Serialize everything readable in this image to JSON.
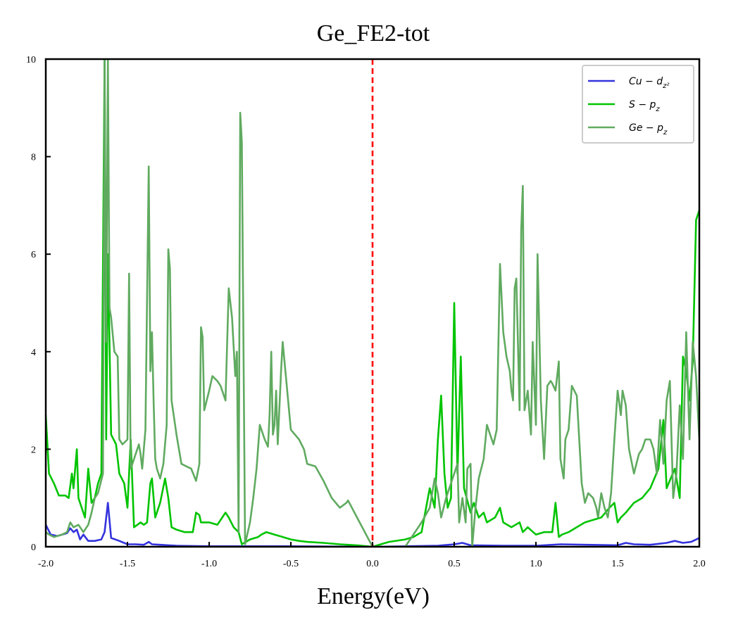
{
  "chart_data": {
    "type": "line",
    "title": "Ge_FE2-tot",
    "xlabel": "Energy(eV)",
    "ylabel": "",
    "xlim": [
      -2.0,
      2.0
    ],
    "ylim": [
      0,
      10
    ],
    "xticks": [
      -2.0,
      -1.5,
      -1.0,
      -0.5,
      0.0,
      0.5,
      1.0,
      1.5,
      2.0
    ],
    "xtick_labels": [
      "-2.0",
      "-1.5",
      "-1.0",
      "-0.5",
      "0.0",
      "0.5",
      "1.0",
      "1.5",
      "2.0"
    ],
    "yticks": [
      0,
      2,
      4,
      6,
      8,
      10
    ],
    "ytick_labels": [
      "0",
      "2",
      "4",
      "6",
      "8",
      "10"
    ],
    "grid": false,
    "legend_position": "top-right",
    "vline": {
      "x": 0.0,
      "color": "#ff0000",
      "style": "dashed"
    },
    "series": [
      {
        "name": "Cu − d",
        "legend_sub": "z²",
        "color": "#3333dd",
        "x": [
          -2.0,
          -1.97,
          -1.93,
          -1.9,
          -1.87,
          -1.85,
          -1.83,
          -1.81,
          -1.79,
          -1.77,
          -1.74,
          -1.7,
          -1.66,
          -1.64,
          -1.62,
          -1.6,
          -1.55,
          -1.5,
          -1.45,
          -1.4,
          -1.37,
          -1.35,
          -1.3,
          -1.25,
          -1.2,
          -1.0,
          -0.5,
          0.0,
          0.4,
          0.5,
          0.55,
          0.6,
          0.8,
          1.0,
          1.15,
          1.5,
          1.55,
          1.6,
          1.7,
          1.8,
          1.85,
          1.9,
          1.95,
          2.0
        ],
        "y": [
          0.45,
          0.25,
          0.22,
          0.25,
          0.28,
          0.38,
          0.3,
          0.35,
          0.15,
          0.25,
          0.12,
          0.12,
          0.15,
          0.3,
          0.9,
          0.18,
          0.12,
          0.05,
          0.05,
          0.04,
          0.1,
          0.05,
          0.04,
          0.03,
          0.02,
          0.01,
          0.01,
          0.0,
          0.02,
          0.05,
          0.08,
          0.03,
          0.02,
          0.02,
          0.05,
          0.03,
          0.08,
          0.05,
          0.04,
          0.08,
          0.12,
          0.08,
          0.1,
          0.18
        ]
      },
      {
        "name": "S − p",
        "legend_sub": "z",
        "color": "#00c400",
        "x": [
          -2.0,
          -1.98,
          -1.95,
          -1.92,
          -1.88,
          -1.86,
          -1.84,
          -1.83,
          -1.81,
          -1.8,
          -1.78,
          -1.76,
          -1.74,
          -1.72,
          -1.7,
          -1.68,
          -1.66,
          -1.64,
          -1.63,
          -1.62,
          -1.6,
          -1.57,
          -1.55,
          -1.52,
          -1.5,
          -1.48,
          -1.46,
          -1.42,
          -1.4,
          -1.38,
          -1.36,
          -1.35,
          -1.33,
          -1.3,
          -1.27,
          -1.25,
          -1.23,
          -1.2,
          -1.15,
          -1.1,
          -1.08,
          -1.06,
          -1.05,
          -1.0,
          -0.95,
          -0.9,
          -0.88,
          -0.85,
          -0.82,
          -0.8,
          -0.75,
          -0.7,
          -0.68,
          -0.65,
          -0.6,
          -0.55,
          -0.5,
          -0.45,
          -0.4,
          -0.3,
          -0.2,
          -0.1,
          0.0,
          0.1,
          0.2,
          0.25,
          0.3,
          0.35,
          0.38,
          0.4,
          0.42,
          0.44,
          0.46,
          0.48,
          0.5,
          0.52,
          0.54,
          0.56,
          0.6,
          0.62,
          0.65,
          0.68,
          0.7,
          0.75,
          0.78,
          0.8,
          0.85,
          0.9,
          0.92,
          0.95,
          1.0,
          1.05,
          1.1,
          1.12,
          1.14,
          1.16,
          1.2,
          1.25,
          1.3,
          1.35,
          1.4,
          1.45,
          1.48,
          1.5,
          1.52,
          1.55,
          1.6,
          1.65,
          1.7,
          1.75,
          1.78,
          1.8,
          1.85,
          1.88,
          1.9,
          1.92,
          1.94,
          1.96,
          1.98,
          2.0
        ],
        "y": [
          2.7,
          1.5,
          1.3,
          1.05,
          1.05,
          1.0,
          1.5,
          1.2,
          2.0,
          1.0,
          0.8,
          0.6,
          1.6,
          0.9,
          1.0,
          1.3,
          1.5,
          10.0,
          2.2,
          6.0,
          2.3,
          2.1,
          1.5,
          1.3,
          0.8,
          2.2,
          0.4,
          0.5,
          0.45,
          0.5,
          1.3,
          1.4,
          0.6,
          0.9,
          1.4,
          1.0,
          0.4,
          0.35,
          0.3,
          0.3,
          0.7,
          0.65,
          0.5,
          0.5,
          0.45,
          0.7,
          0.6,
          0.4,
          0.3,
          0.05,
          0.15,
          0.2,
          0.25,
          0.3,
          0.25,
          0.2,
          0.15,
          0.12,
          0.1,
          0.08,
          0.05,
          0.03,
          0.0,
          0.1,
          0.15,
          0.2,
          0.3,
          1.2,
          0.8,
          2.2,
          3.1,
          1.5,
          0.8,
          1.0,
          5.0,
          1.5,
          3.9,
          1.2,
          0.7,
          0.9,
          0.6,
          0.7,
          0.5,
          0.6,
          0.8,
          0.5,
          0.4,
          0.5,
          0.3,
          0.4,
          0.25,
          0.3,
          0.3,
          0.9,
          0.2,
          0.25,
          0.3,
          0.4,
          0.5,
          0.55,
          0.6,
          0.8,
          0.9,
          0.5,
          0.6,
          0.7,
          0.9,
          1.0,
          1.2,
          1.6,
          2.6,
          1.2,
          1.6,
          1.0,
          3.9,
          3.6,
          3.0,
          3.8,
          6.7,
          6.9
        ]
      },
      {
        "name": "Ge − p",
        "legend_sub": "z",
        "color": "#60aa60",
        "x": [
          -2.0,
          -1.98,
          -1.95,
          -1.9,
          -1.87,
          -1.85,
          -1.83,
          -1.8,
          -1.77,
          -1.74,
          -1.72,
          -1.7,
          -1.68,
          -1.65,
          -1.64,
          -1.63,
          -1.62,
          -1.61,
          -1.6,
          -1.58,
          -1.56,
          -1.55,
          -1.53,
          -1.5,
          -1.49,
          -1.48,
          -1.47,
          -1.45,
          -1.43,
          -1.42,
          -1.41,
          -1.39,
          -1.37,
          -1.36,
          -1.35,
          -1.34,
          -1.33,
          -1.32,
          -1.3,
          -1.28,
          -1.26,
          -1.25,
          -1.24,
          -1.23,
          -1.2,
          -1.17,
          -1.14,
          -1.11,
          -1.08,
          -1.06,
          -1.05,
          -1.04,
          -1.03,
          -1.0,
          -0.98,
          -0.95,
          -0.93,
          -0.9,
          -0.88,
          -0.86,
          -0.84,
          -0.83,
          -0.82,
          -0.81,
          -0.8,
          -0.78,
          -0.75,
          -0.73,
          -0.71,
          -0.69,
          -0.68,
          -0.66,
          -0.64,
          -0.63,
          -0.62,
          -0.61,
          -0.6,
          -0.59,
          -0.58,
          -0.56,
          -0.55,
          -0.5,
          -0.45,
          -0.42,
          -0.4,
          -0.35,
          -0.3,
          -0.25,
          -0.2,
          -0.16,
          -0.15,
          0.0,
          0.2,
          0.22,
          0.25,
          0.3,
          0.35,
          0.38,
          0.4,
          0.42,
          0.45,
          0.5,
          0.52,
          0.53,
          0.55,
          0.57,
          0.58,
          0.6,
          0.61,
          0.63,
          0.65,
          0.68,
          0.7,
          0.72,
          0.74,
          0.76,
          0.78,
          0.8,
          0.82,
          0.84,
          0.85,
          0.86,
          0.87,
          0.88,
          0.9,
          0.91,
          0.92,
          0.93,
          0.95,
          0.97,
          0.98,
          1.0,
          1.01,
          1.03,
          1.05,
          1.07,
          1.09,
          1.1,
          1.12,
          1.14,
          1.15,
          1.17,
          1.18,
          1.2,
          1.22,
          1.25,
          1.28,
          1.3,
          1.32,
          1.35,
          1.37,
          1.38,
          1.4,
          1.42,
          1.44,
          1.46,
          1.48,
          1.5,
          1.52,
          1.53,
          1.55,
          1.57,
          1.6,
          1.63,
          1.65,
          1.67,
          1.7,
          1.72,
          1.74,
          1.76,
          1.78,
          1.8,
          1.82,
          1.84,
          1.86,
          1.88,
          1.9,
          1.92,
          1.94,
          1.96,
          1.98,
          2.0
        ],
        "y": [
          0.3,
          0.25,
          0.2,
          0.25,
          0.3,
          0.5,
          0.4,
          0.45,
          0.3,
          0.45,
          0.7,
          1.0,
          1.1,
          1.5,
          10.0,
          4.2,
          10.0,
          4.9,
          4.7,
          4.0,
          3.9,
          2.2,
          2.1,
          2.2,
          5.6,
          1.6,
          1.7,
          1.9,
          2.1,
          1.9,
          1.6,
          2.4,
          7.8,
          3.6,
          4.4,
          3.0,
          1.8,
          1.6,
          1.4,
          1.7,
          2.5,
          6.1,
          5.7,
          3.0,
          2.3,
          1.7,
          1.65,
          1.6,
          1.35,
          1.7,
          4.5,
          4.3,
          2.8,
          3.2,
          3.5,
          3.4,
          3.3,
          3.0,
          5.3,
          4.7,
          3.5,
          4.0,
          0.3,
          8.9,
          8.3,
          0.05,
          0.5,
          1.0,
          1.6,
          2.5,
          2.4,
          2.2,
          2.05,
          2.7,
          4.0,
          2.3,
          2.5,
          3.2,
          2.1,
          3.6,
          4.2,
          2.4,
          2.2,
          2.0,
          1.7,
          1.65,
          1.35,
          1.0,
          0.8,
          0.9,
          0.95,
          0.0,
          0.0,
          0.1,
          0.25,
          0.5,
          0.8,
          1.4,
          1.1,
          0.6,
          1.0,
          1.5,
          1.7,
          0.5,
          1.0,
          0.5,
          1.6,
          1.7,
          0.0,
          0.8,
          1.4,
          1.8,
          2.5,
          2.3,
          2.1,
          2.4,
          5.8,
          4.4,
          3.9,
          3.6,
          3.2,
          3.0,
          5.3,
          5.5,
          2.8,
          6.5,
          7.4,
          2.8,
          3.2,
          2.3,
          4.2,
          2.5,
          6.0,
          3.0,
          1.8,
          3.3,
          3.4,
          3.35,
          3.2,
          3.8,
          1.8,
          1.4,
          2.2,
          2.4,
          3.3,
          3.1,
          1.3,
          0.9,
          1.1,
          1.0,
          0.8,
          0.6,
          1.1,
          0.8,
          0.6,
          1.1,
          2.2,
          3.2,
          2.7,
          3.2,
          2.9,
          2.0,
          1.5,
          1.9,
          2.0,
          2.2,
          2.2,
          2.0,
          1.5,
          2.6,
          1.7,
          3.0,
          3.4,
          1.0,
          1.5,
          2.9,
          1.8,
          4.4,
          2.2,
          4.2,
          3.5,
          2.2
        ]
      }
    ]
  }
}
